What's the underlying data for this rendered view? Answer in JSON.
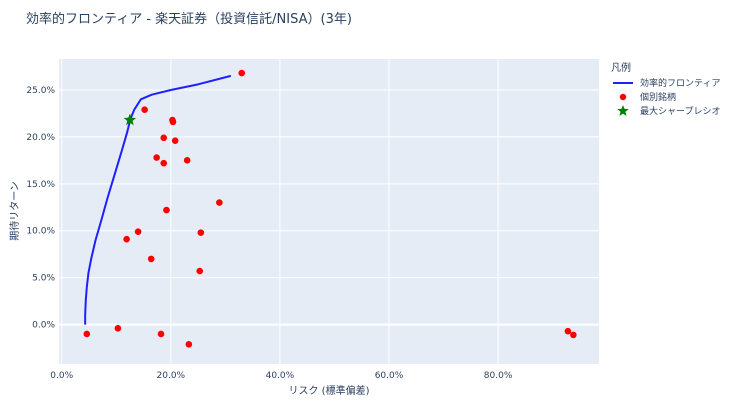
{
  "chart_data": {
    "type": "scatter",
    "title": "効率的フロンティア - 楽天証券（投資信託/NISA）(3年)",
    "xlabel": "リスク (標準偏差)",
    "ylabel": "期待リターン",
    "xlim": [
      -0.005,
      0.985
    ],
    "ylim": [
      -0.042,
      0.283
    ],
    "x_ticks": [
      0.0,
      0.2,
      0.4,
      0.6,
      0.8
    ],
    "x_tick_labels": [
      "0.0%",
      "20.0%",
      "40.0%",
      "60.0%",
      "80.0%"
    ],
    "y_ticks": [
      0.0,
      0.05,
      0.1,
      0.15,
      0.2,
      0.25
    ],
    "y_tick_labels": [
      "0.0%",
      "5.0%",
      "10.0%",
      "15.0%",
      "20.0%",
      "25.0%"
    ],
    "grid": true,
    "legend_title": "凡例",
    "legend_position": "right",
    "series": [
      {
        "name": "効率的フロンティア",
        "kind": "line",
        "color": "#1f1fff",
        "x": [
          0.043,
          0.043,
          0.044,
          0.046,
          0.049,
          0.054,
          0.062,
          0.072,
          0.084,
          0.097,
          0.11,
          0.12,
          0.126,
          0.133,
          0.145,
          0.165,
          0.2,
          0.25,
          0.31
        ],
        "y": [
          0.0,
          0.01,
          0.025,
          0.04,
          0.055,
          0.07,
          0.09,
          0.11,
          0.135,
          0.16,
          0.185,
          0.205,
          0.219,
          0.229,
          0.24,
          0.245,
          0.25,
          0.256,
          0.265
        ]
      },
      {
        "name": "個別銘柄",
        "kind": "markers",
        "color": "#ff0000",
        "points": [
          [
            0.33,
            0.268
          ],
          [
            0.152,
            0.229
          ],
          [
            0.203,
            0.218
          ],
          [
            0.204,
            0.216
          ],
          [
            0.187,
            0.199
          ],
          [
            0.208,
            0.196
          ],
          [
            0.174,
            0.178
          ],
          [
            0.23,
            0.175
          ],
          [
            0.187,
            0.172
          ],
          [
            0.289,
            0.13
          ],
          [
            0.192,
            0.122
          ],
          [
            0.14,
            0.099
          ],
          [
            0.255,
            0.098
          ],
          [
            0.119,
            0.091
          ],
          [
            0.164,
            0.07
          ],
          [
            0.253,
            0.057
          ],
          [
            0.103,
            -0.004
          ],
          [
            0.046,
            -0.01
          ],
          [
            0.182,
            -0.01
          ],
          [
            0.233,
            -0.021
          ],
          [
            0.928,
            -0.007
          ],
          [
            0.938,
            -0.011
          ]
        ]
      },
      {
        "name": "最大シャープレシオ",
        "kind": "star",
        "color": "#008000",
        "points": [
          [
            0.125,
            0.218
          ]
        ]
      }
    ]
  }
}
